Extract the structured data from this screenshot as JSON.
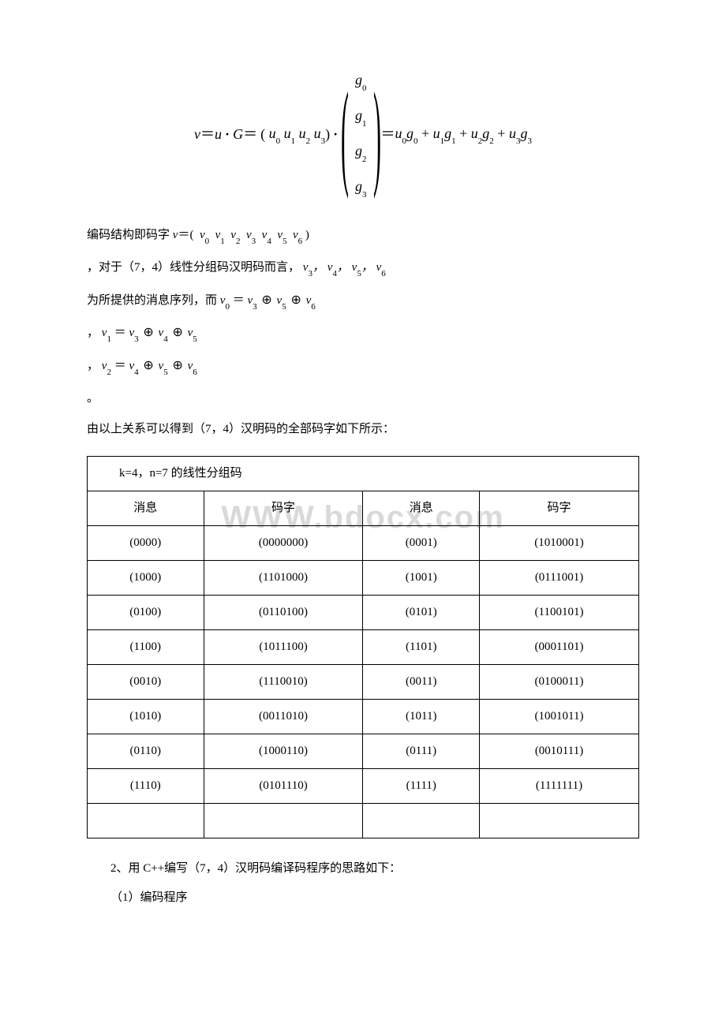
{
  "equation": {
    "lhs_v": "v",
    "eq": "＝",
    "lhs_u": "u",
    "dot": "·",
    "G": "G",
    "openParen": "(",
    "u0": "u",
    "s0": "0",
    "u1": "u",
    "s1": "1",
    "u2": "u",
    "s2": "2",
    "u3": "u",
    "s3": "3",
    "closeParen": ")",
    "g": "g",
    "gs0": "0",
    "gs1": "1",
    "gs2": "2",
    "gs3": "3",
    "rhs": "u",
    "plus": "+"
  },
  "line1": {
    "prefix": "编码结构即码字",
    "v": "v",
    "eq": "＝",
    "open": "(",
    "sym": "v",
    "s": [
      "0",
      "1",
      "2",
      "3",
      "4",
      "5",
      "6"
    ],
    "close": ")"
  },
  "line2": {
    "prefix": "，对于（7，4）线性分组码汉明码而言，",
    "sym": "v",
    "s": [
      "3",
      "4",
      "5",
      "6"
    ]
  },
  "line3": {
    "prefix": "为所提供的消息序列，而",
    "sym": "v",
    "eq": "＝",
    "oplus": "⊕",
    "lidx": "0",
    "ridx": [
      "3",
      "5",
      "6"
    ]
  },
  "line4": {
    "prefix": "，",
    "sym": "v",
    "eq": "＝",
    "oplus": "⊕",
    "lidx": "1",
    "ridx": [
      "3",
      "4",
      "5"
    ]
  },
  "line5": {
    "prefix": "，",
    "sym": "v",
    "eq": "＝",
    "oplus": "⊕",
    "lidx": "2",
    "ridx": [
      "4",
      "5",
      "6"
    ]
  },
  "period": "。",
  "conclusion": "由以上关系可以得到（7，4）汉明码的全部码字如下所示：",
  "watermark": "WWW.bdocx.com",
  "table": {
    "title": "k=4，n=7 的线性分组码",
    "headers": [
      "消息",
      "码字",
      "消息",
      "码字"
    ],
    "rows": [
      [
        "(0000)",
        "(0000000)",
        "(0001)",
        "(1010001)"
      ],
      [
        "(1000)",
        "(1101000)",
        "(1001)",
        "(0111001)"
      ],
      [
        "(0100)",
        "(0110100)",
        "(0101)",
        "(1100101)"
      ],
      [
        "(1100)",
        "(1011100)",
        "(1101)",
        "(0001101)"
      ],
      [
        "(0010)",
        "(1110010)",
        "(0011)",
        "(0100011)"
      ],
      [
        "(1010)",
        "(0011010)",
        "(1011)",
        "(1001011)"
      ],
      [
        "(0110)",
        "(1000110)",
        "(0111)",
        "(0010111)"
      ],
      [
        "(1110)",
        "(0101110)",
        "(1111)",
        "(1111111)"
      ],
      [
        "",
        "",
        "",
        ""
      ]
    ]
  },
  "section2": "2、用 C++编写（7，4）汉明码编译码程序的思路如下：",
  "subitem1": "（1）编码程序"
}
